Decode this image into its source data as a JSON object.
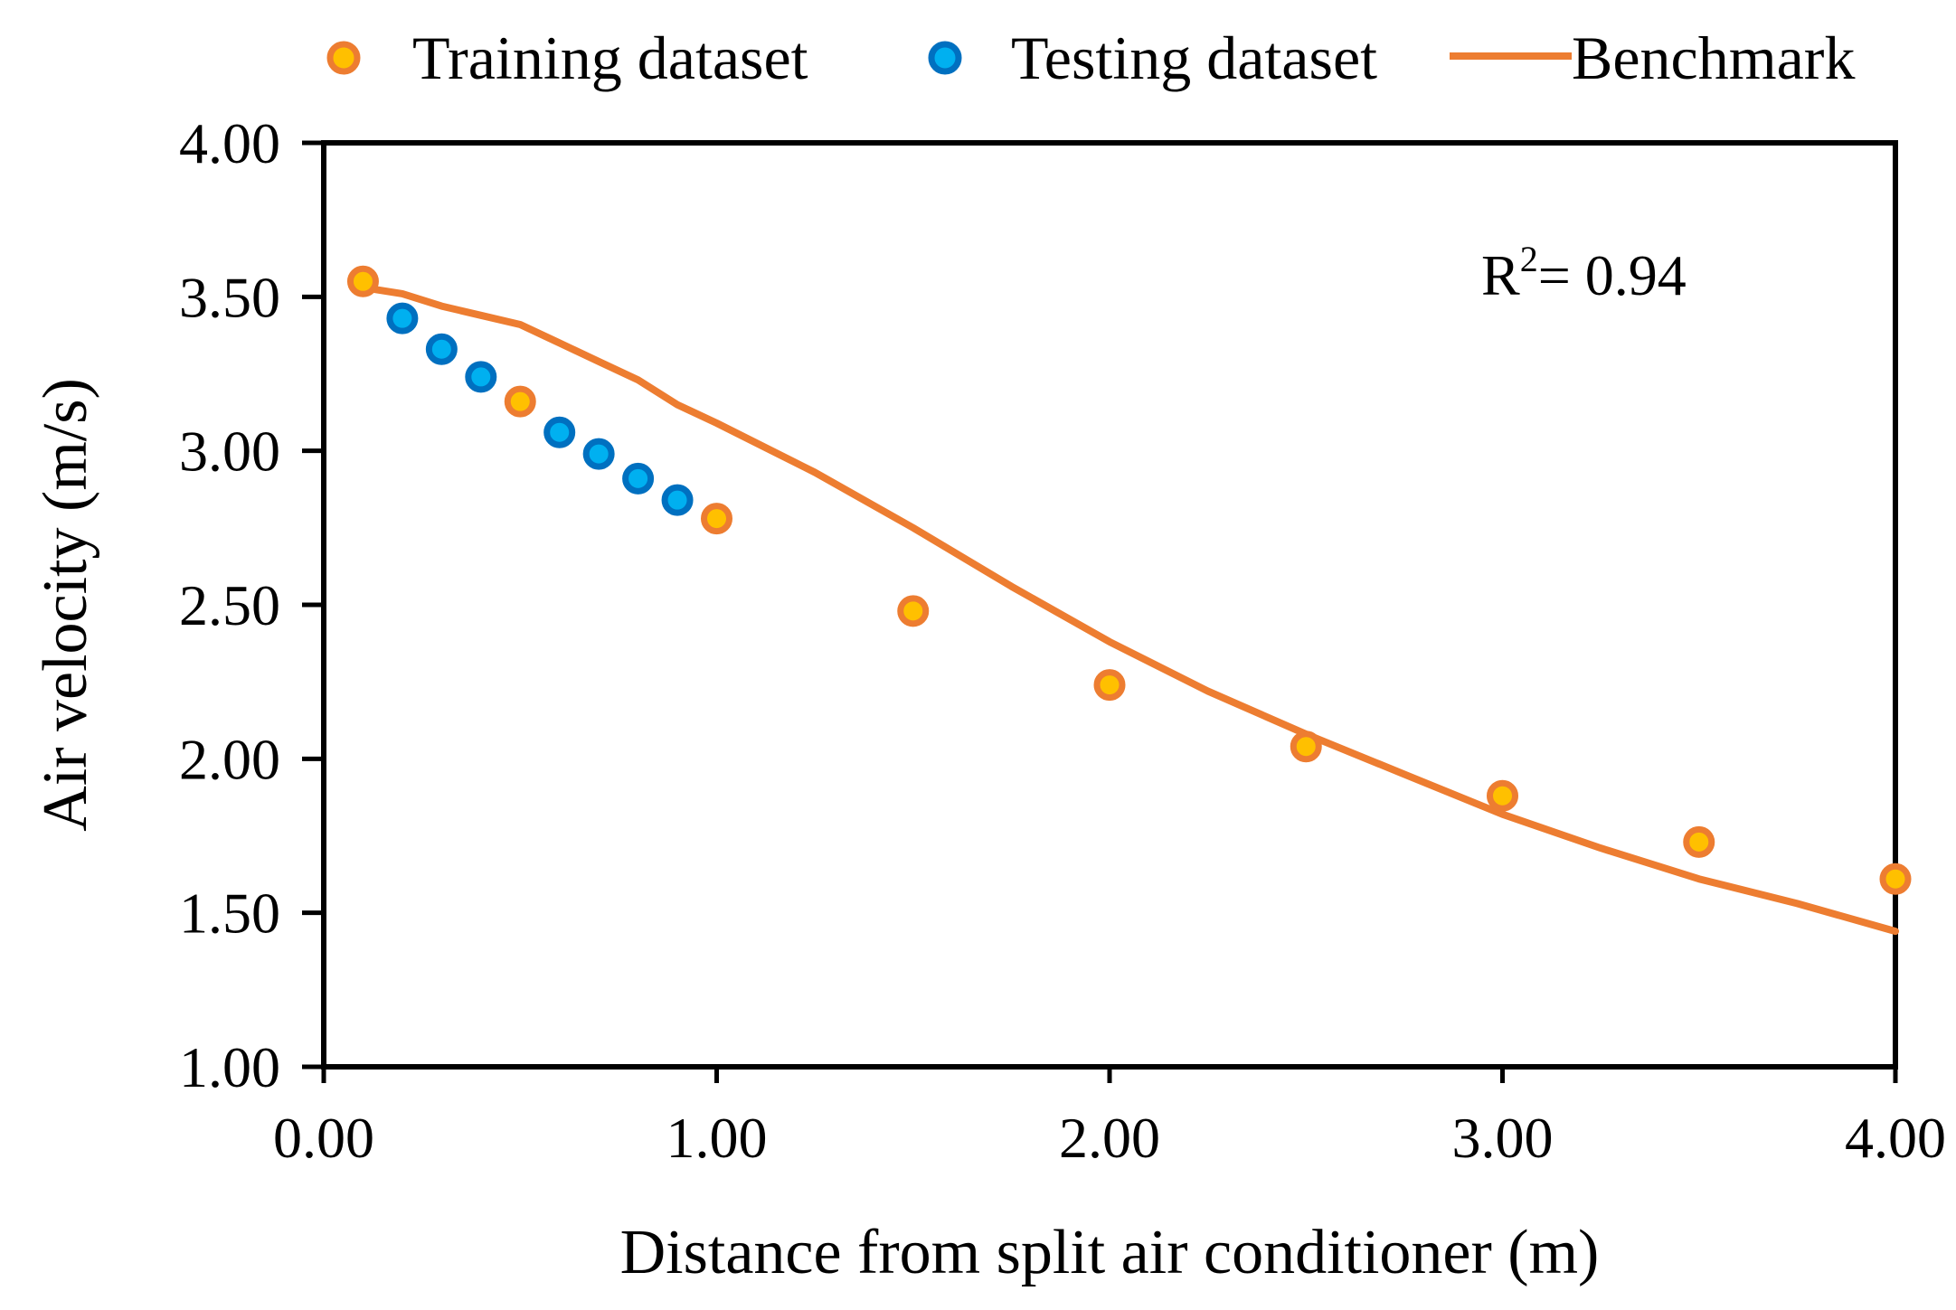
{
  "chart_data": {
    "type": "scatter",
    "xlabel": "Distance from split air conditioner (m)",
    "ylabel": "Air velocity (m/s)",
    "xlim": [
      0,
      4
    ],
    "ylim": [
      1,
      4
    ],
    "x_ticks": [
      "0.00",
      "1.00",
      "2.00",
      "3.00",
      "4.00"
    ],
    "y_ticks": [
      "1.00",
      "1.50",
      "2.00",
      "2.50",
      "3.00",
      "3.50",
      "4.00"
    ],
    "grid": false,
    "legend_position": "top",
    "annotation": {
      "prefix": "R",
      "superscript": "2",
      "text": "= 0.94"
    },
    "series": [
      {
        "name": "Training dataset",
        "kind": "scatter",
        "fill": "#FFC000",
        "stroke": "#ED7D31",
        "points": [
          [
            0.1,
            3.55
          ],
          [
            0.5,
            3.16
          ],
          [
            1.0,
            2.78
          ],
          [
            1.5,
            2.48
          ],
          [
            2.0,
            2.24
          ],
          [
            2.5,
            2.04
          ],
          [
            3.0,
            1.88
          ],
          [
            3.5,
            1.73
          ],
          [
            4.0,
            1.61
          ]
        ]
      },
      {
        "name": "Testing dataset",
        "kind": "scatter",
        "fill": "#00B0F0",
        "stroke": "#0070C0",
        "points": [
          [
            0.2,
            3.43
          ],
          [
            0.3,
            3.33
          ],
          [
            0.4,
            3.24
          ],
          [
            0.6,
            3.06
          ],
          [
            0.7,
            2.99
          ],
          [
            0.8,
            2.91
          ],
          [
            0.9,
            2.84
          ]
        ]
      },
      {
        "name": "Benchmark",
        "kind": "line",
        "stroke": "#ED7D31",
        "points": [
          [
            0.1,
            3.53
          ],
          [
            0.2,
            3.51
          ],
          [
            0.3,
            3.47
          ],
          [
            0.4,
            3.44
          ],
          [
            0.5,
            3.41
          ],
          [
            0.6,
            3.35
          ],
          [
            0.7,
            3.29
          ],
          [
            0.8,
            3.23
          ],
          [
            0.9,
            3.15
          ],
          [
            1.0,
            3.09
          ],
          [
            1.25,
            2.93
          ],
          [
            1.5,
            2.75
          ],
          [
            1.75,
            2.56
          ],
          [
            2.0,
            2.38
          ],
          [
            2.25,
            2.22
          ],
          [
            2.5,
            2.08
          ],
          [
            2.75,
            1.95
          ],
          [
            3.0,
            1.82
          ],
          [
            3.25,
            1.71
          ],
          [
            3.5,
            1.61
          ],
          [
            3.75,
            1.53
          ],
          [
            4.0,
            1.44
          ]
        ]
      }
    ]
  }
}
